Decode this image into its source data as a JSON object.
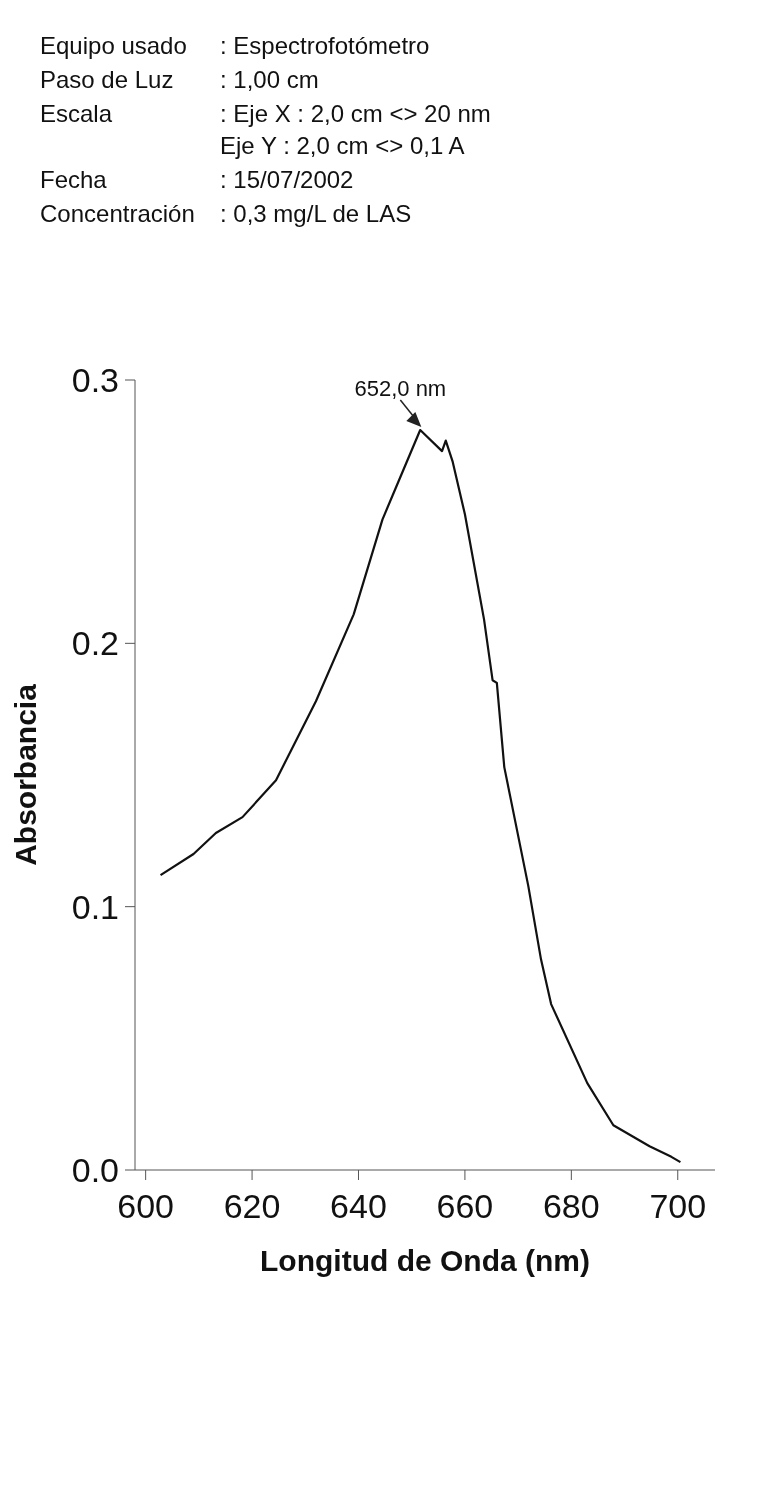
{
  "chart_data": {
    "type": "line",
    "xlabel": "Longitud de Onda (nm)",
    "ylabel": "Absorbancia",
    "xlim": [
      598,
      707
    ],
    "xticks": [
      600,
      620,
      640,
      660,
      680,
      700
    ],
    "ylim": [
      0,
      0.3
    ],
    "yticks": [
      {
        "value": 0,
        "label": "0.0"
      },
      0.1,
      0.2,
      0.3
    ],
    "grid": false,
    "marker": "none",
    "line_style": "solid",
    "series": [
      {
        "color": "#111111",
        "x": [
          602.8,
          609.0,
          613.2,
          618.2,
          624.5,
          632.0,
          639.1,
          644.5,
          647.0,
          651.6,
          655.7,
          656.4,
          657.7,
          660.0,
          663.6,
          665.2,
          666.0,
          667.4,
          671.9,
          674.3,
          676.2,
          683.0,
          687.9,
          694.7,
          698.8,
          700.5
        ],
        "values": [
          0.112,
          0.12,
          0.128,
          0.134,
          0.148,
          0.178,
          0.211,
          0.247,
          0.259,
          0.281,
          0.273,
          0.277,
          0.269,
          0.249,
          0.209,
          0.186,
          0.185,
          0.153,
          0.108,
          0.08,
          0.063,
          0.033,
          0.017,
          0.009,
          0.005,
          0.003
        ]
      }
    ],
    "annotations": [
      {
        "text": "652,0 nm",
        "x": 652,
        "y": 0.281
      },
      "Equipo usado",
      ": Espectrofotómetro",
      "Paso de Luz",
      ": 1,00 cm",
      "Escala",
      ": Eje X : 2,0 cm <> 20 nm\n  Eje Y : 2,0 cm <> 0,1 A",
      "Fecha",
      ": 15/07/2002",
      "Concentración",
      ": 0,3 mg/L de LAS"
    ]
  }
}
